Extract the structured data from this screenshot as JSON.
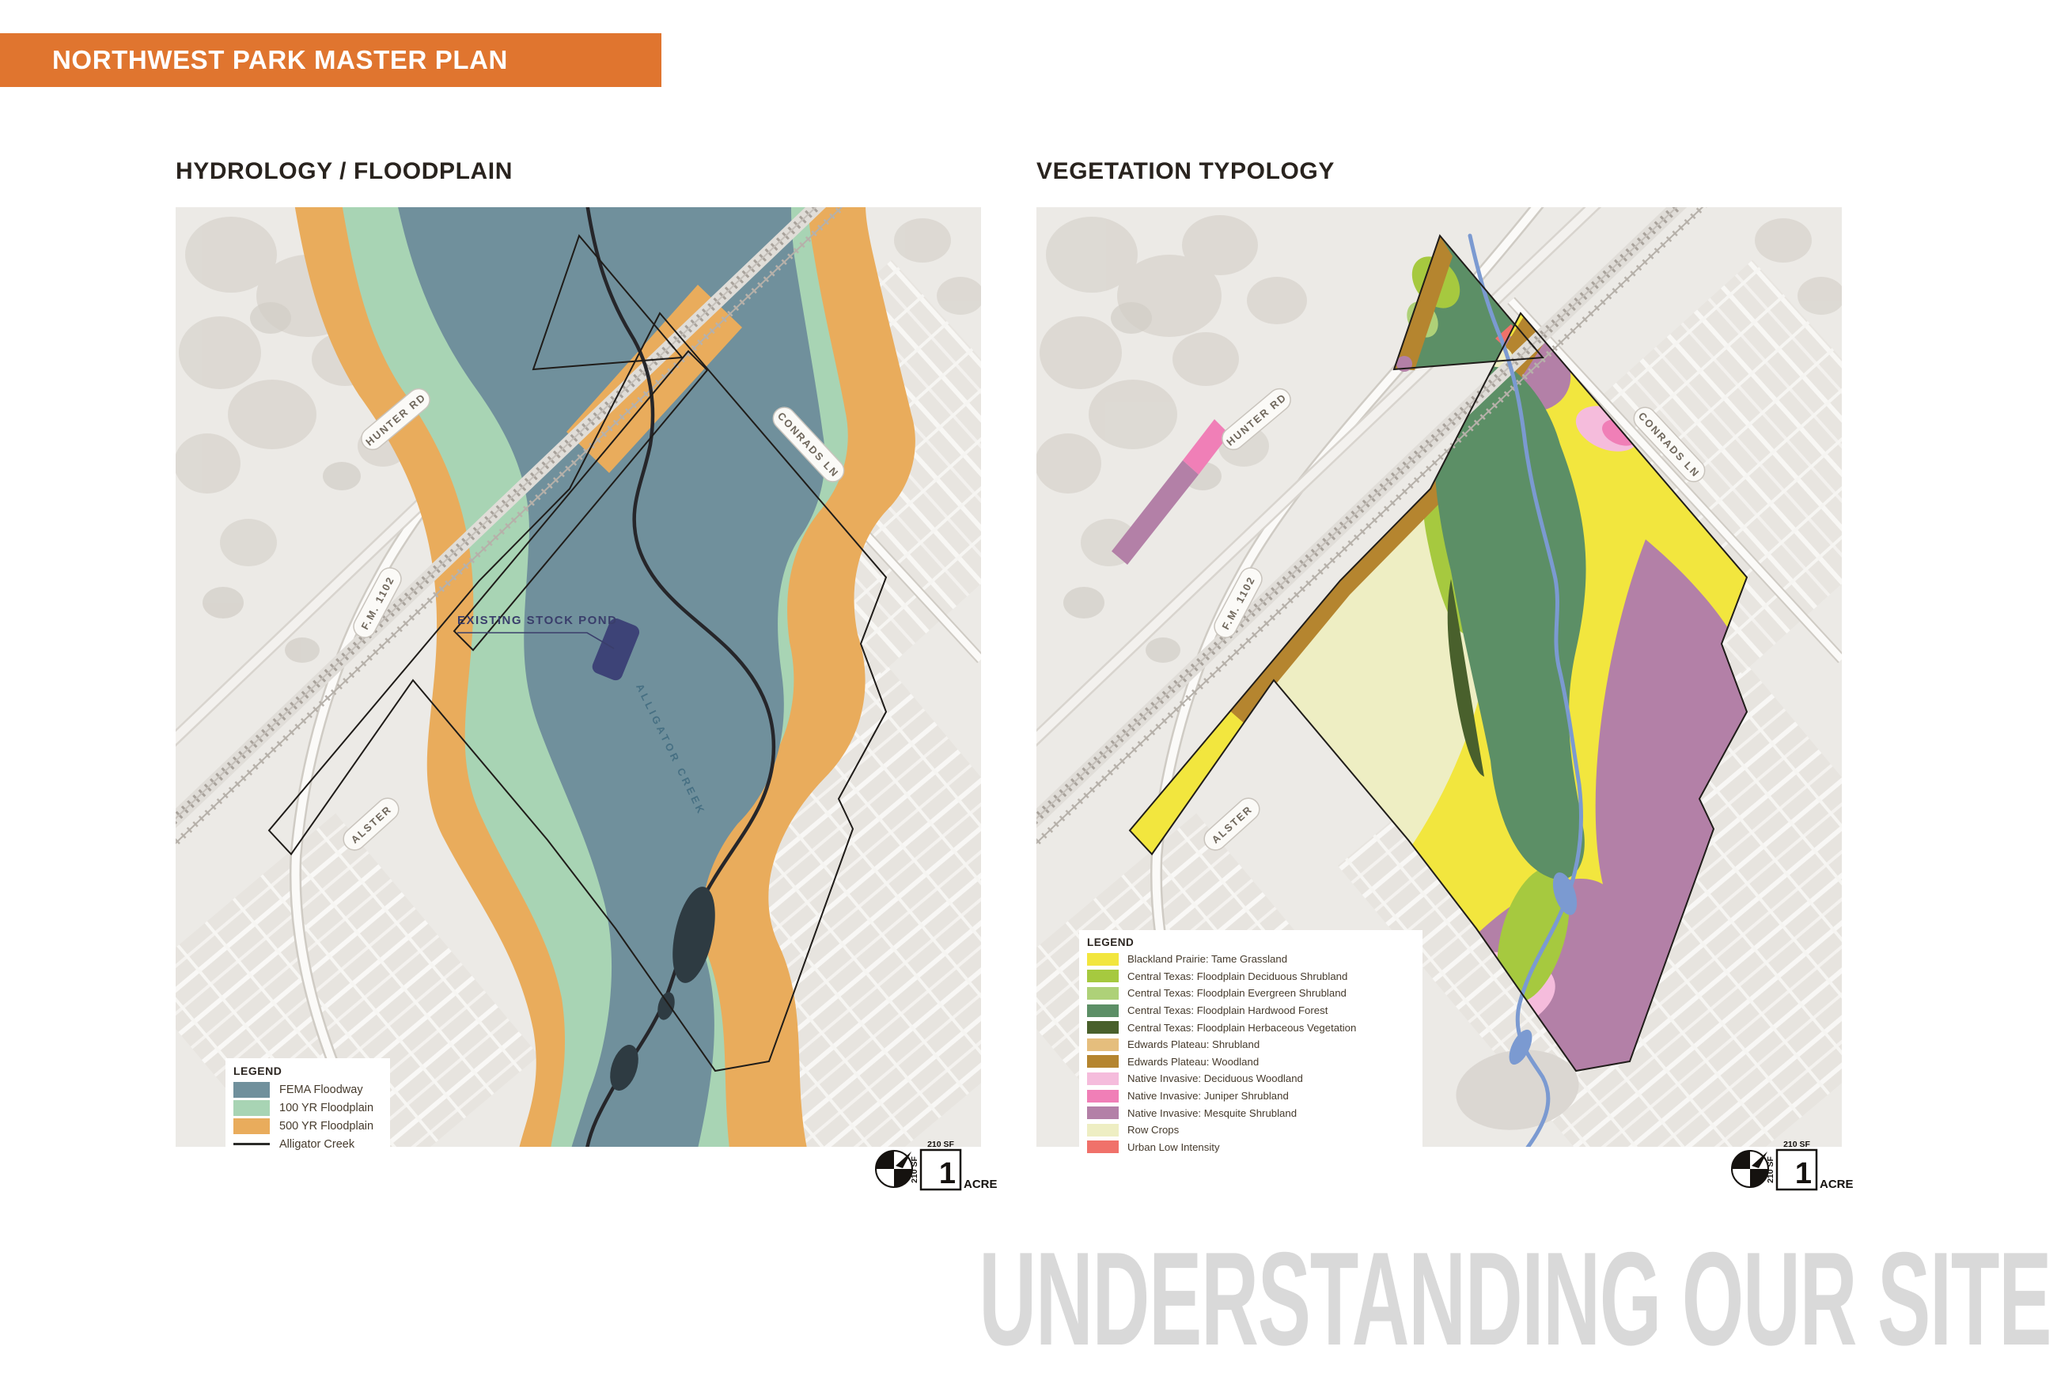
{
  "banner": {
    "title": "NORTHWEST PARK MASTER PLAN",
    "bg": "#E0752F",
    "fg": "#FFFFFF"
  },
  "footer": {
    "title": "UNDERSTANDING OUR SITE",
    "color": "#D9D9D9"
  },
  "scale": {
    "side_top": "210 SF",
    "side_left": "210 SF",
    "value": "1",
    "unit": "ACRE"
  },
  "basemap": {
    "road_labels": [
      "HUNTER RD",
      "F.M. 1102",
      "CONRADS LN",
      "ALSTER"
    ]
  },
  "hydrology": {
    "title": "HYDROLOGY / FLOODPLAIN",
    "legend_title": "LEGEND",
    "legend": [
      {
        "label": "FEMA Floodway",
        "color": "#70909C",
        "style": "swatch"
      },
      {
        "label": "100 YR Floodplain",
        "color": "#A8D4B4",
        "style": "swatch"
      },
      {
        "label": "500 YR Floodplain",
        "color": "#E9AC5C",
        "style": "swatch"
      },
      {
        "label": "Alligator Creek",
        "color": "#2B2B29",
        "style": "line"
      }
    ],
    "annotations": {
      "stock_pond": "EXISTING STOCK POND",
      "creek": "ALLIGATOR CREEK"
    }
  },
  "vegetation": {
    "title": "VEGETATION TYPOLOGY",
    "legend_title": "LEGEND",
    "legend": [
      {
        "label": "Blackland Prairie: Tame Grassland",
        "color": "#F2E63E",
        "style": "swatch"
      },
      {
        "label": "Central Texas: Floodplain Deciduous Shrubland",
        "color": "#A6C93F",
        "style": "swatch"
      },
      {
        "label": "Central Texas: Floodplain Evergreen Shrubland",
        "color": "#AED178",
        "style": "swatch"
      },
      {
        "label": "Central Texas: Floodplain Hardwood Forest",
        "color": "#5C8F66",
        "style": "swatch"
      },
      {
        "label": "Central Texas: Floodplain Herbaceous Vegetation",
        "color": "#49602C",
        "style": "swatch"
      },
      {
        "label": "Edwards Plateau: Shrubland",
        "color": "#E5BE7D",
        "style": "swatch"
      },
      {
        "label": "Edwards Plateau: Woodland",
        "color": "#B5852F",
        "style": "swatch"
      },
      {
        "label": "Native Invasive: Deciduous Woodland",
        "color": "#F5BCDC",
        "style": "swatch"
      },
      {
        "label": "Native Invasive: Juniper Shrubland",
        "color": "#F07FB7",
        "style": "swatch"
      },
      {
        "label": "Native Invasive: Mesquite Shrubland",
        "color": "#B380A7",
        "style": "swatch"
      },
      {
        "label": "Row Crops",
        "color": "#EEEEC3",
        "style": "swatch"
      },
      {
        "label": "Urban Low Intensity",
        "color": "#F0716A",
        "style": "swatch"
      }
    ]
  }
}
